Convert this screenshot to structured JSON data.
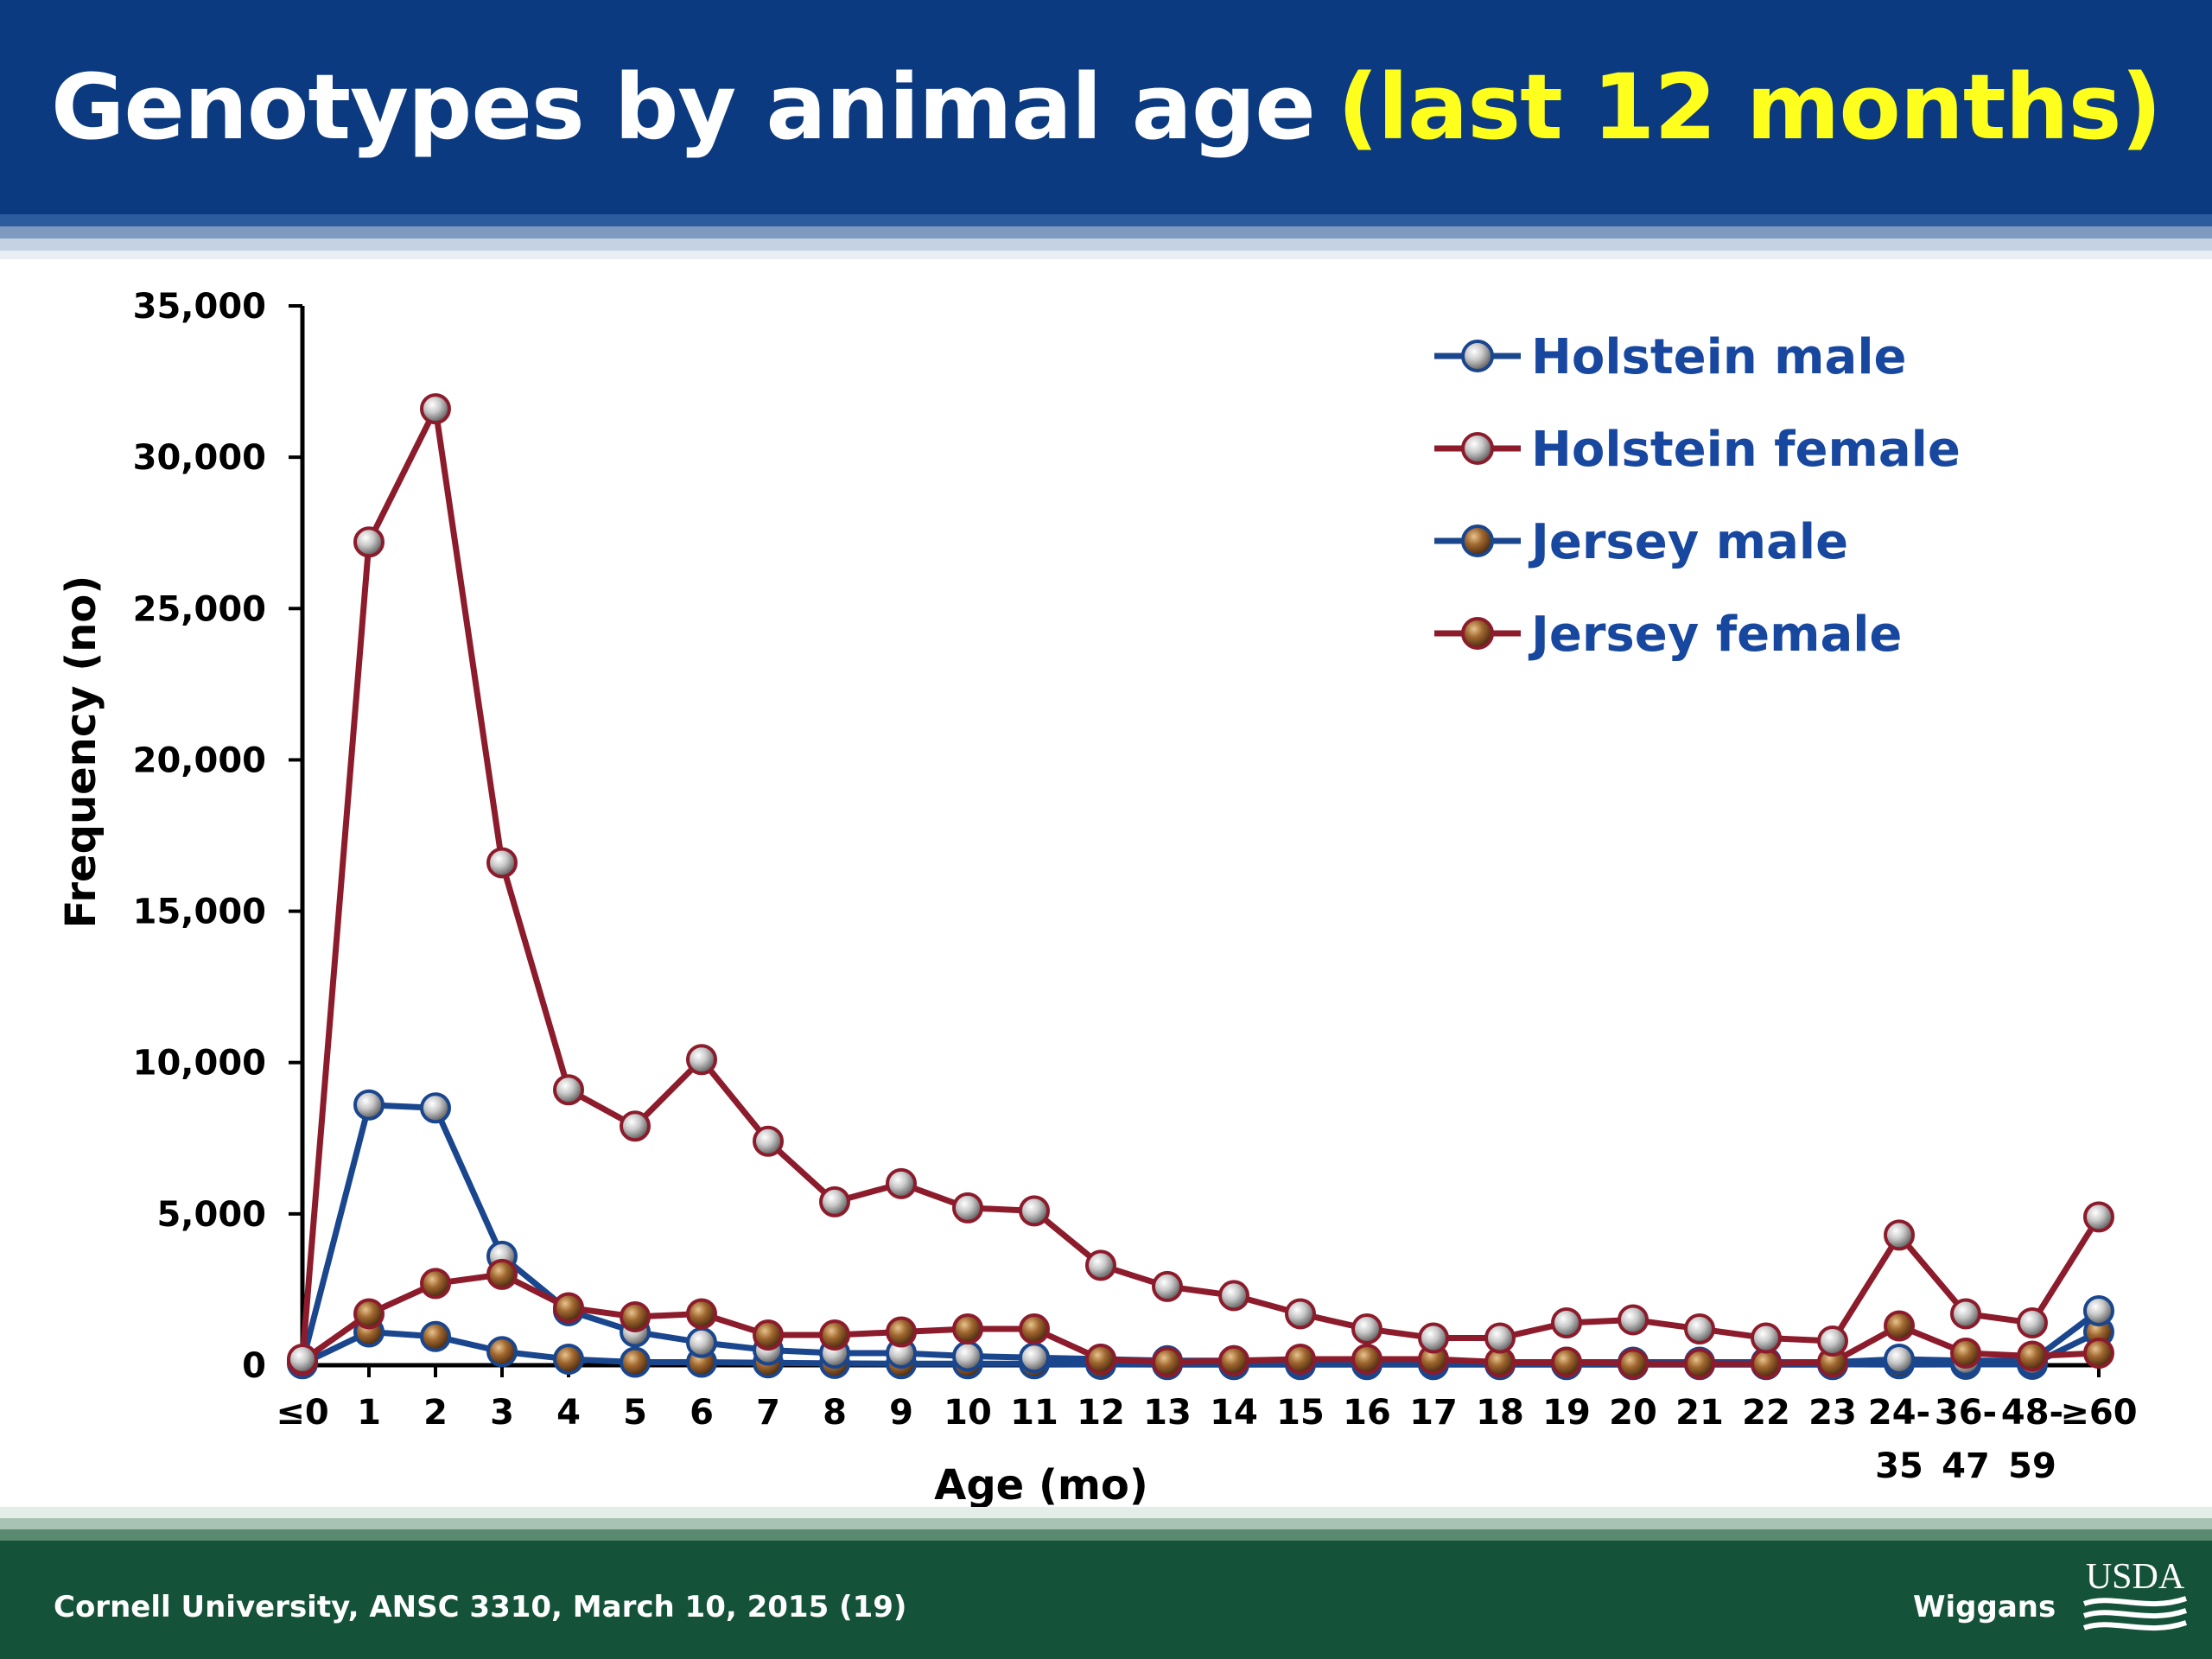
{
  "slide": {
    "title": "Genotypes by animal age",
    "title_highlight": "(last 12 months)",
    "footer_left": "Cornell University, ANSC 3310, March 10, 2015 (19)",
    "footer_right": "Wiggans",
    "logo_text": "USDA",
    "colors": {
      "header_bg": "#0b3a80",
      "title_text": "#ffffff",
      "title_highlight": "#ffff1e",
      "footer_bg": "#15523a",
      "legend_text": "#17479e"
    }
  },
  "chart_data": {
    "type": "line",
    "xlabel": "Age (mo)",
    "ylabel": "Frequency (no)",
    "ylim": [
      0,
      35000
    ],
    "yticks": [
      "0",
      "5,000",
      "10,000",
      "15,000",
      "20,000",
      "25,000",
      "30,000",
      "35,000"
    ],
    "categories": [
      [
        "≤0"
      ],
      [
        "1"
      ],
      [
        "2"
      ],
      [
        "3"
      ],
      [
        "4"
      ],
      [
        "5"
      ],
      [
        "6"
      ],
      [
        "7"
      ],
      [
        "8"
      ],
      [
        "9"
      ],
      [
        "10"
      ],
      [
        "11"
      ],
      [
        "12"
      ],
      [
        "13"
      ],
      [
        "14"
      ],
      [
        "15"
      ],
      [
        "16"
      ],
      [
        "17"
      ],
      [
        "18"
      ],
      [
        "19"
      ],
      [
        "20"
      ],
      [
        "21"
      ],
      [
        "22"
      ],
      [
        "23"
      ],
      [
        "24-",
        "35"
      ],
      [
        "36-",
        "47"
      ],
      [
        "48-",
        "59"
      ],
      [
        "≥60"
      ]
    ],
    "grid": false,
    "legend_position": "top-right",
    "series": [
      {
        "name": "Holstein male",
        "line_color": "#1a468e",
        "marker": "silver",
        "values": [
          100,
          8600,
          8500,
          3600,
          1800,
          1100,
          750,
          500,
          400,
          400,
          300,
          250,
          200,
          150,
          150,
          100,
          100,
          100,
          100,
          100,
          100,
          100,
          100,
          100,
          200,
          150,
          150,
          1800
        ]
      },
      {
        "name": "Holstein female",
        "line_color": "#8c1c2c",
        "marker": "silver",
        "values": [
          200,
          27200,
          31600,
          16600,
          9100,
          7900,
          10100,
          7400,
          5400,
          6000,
          5200,
          5100,
          3300,
          2600,
          2300,
          1700,
          1200,
          900,
          900,
          1400,
          1500,
          1200,
          900,
          800,
          4300,
          1700,
          1400,
          4900
        ]
      },
      {
        "name": "Jersey male",
        "line_color": "#1a468e",
        "marker": "bronze",
        "values": [
          50,
          1100,
          950,
          450,
          200,
          100,
          100,
          80,
          60,
          50,
          50,
          50,
          30,
          20,
          20,
          20,
          20,
          20,
          20,
          20,
          20,
          20,
          20,
          20,
          50,
          30,
          30,
          1100
        ]
      },
      {
        "name": "Jersey female",
        "line_color": "#8c1c2c",
        "marker": "bronze",
        "values": [
          150,
          1700,
          2700,
          3000,
          1900,
          1600,
          1700,
          1000,
          1000,
          1100,
          1200,
          1200,
          200,
          100,
          150,
          200,
          200,
          200,
          100,
          100,
          50,
          50,
          50,
          100,
          1300,
          400,
          300,
          400
        ]
      }
    ]
  }
}
